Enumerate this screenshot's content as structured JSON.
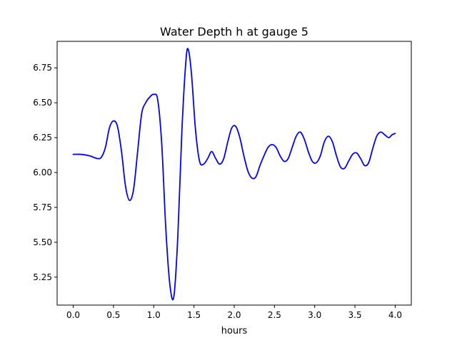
{
  "chart_data": {
    "type": "line",
    "title": "Water Depth h at gauge 5",
    "xlabel": "hours",
    "ylabel": "",
    "xlim": [
      -0.2,
      4.2
    ],
    "ylim": [
      5.05,
      6.94
    ],
    "xticks": [
      0.0,
      0.5,
      1.0,
      1.5,
      2.0,
      2.5,
      3.0,
      3.5,
      4.0
    ],
    "xtick_labels": [
      "0.0",
      "0.5",
      "1.0",
      "1.5",
      "2.0",
      "2.5",
      "3.0",
      "3.5",
      "4.0"
    ],
    "yticks": [
      5.25,
      5.5,
      5.75,
      6.0,
      6.25,
      6.5,
      6.75
    ],
    "ytick_labels": [
      "5.25",
      "5.50",
      "5.75",
      "6.00",
      "6.25",
      "6.50",
      "6.75"
    ],
    "grid": false,
    "legend": "none",
    "series": [
      {
        "color": "#0000ff",
        "x": [
          0.0,
          0.1,
          0.2,
          0.3,
          0.35,
          0.4,
          0.45,
          0.5,
          0.55,
          0.6,
          0.65,
          0.7,
          0.75,
          0.8,
          0.85,
          0.9,
          0.95,
          1.0,
          1.05,
          1.1,
          1.15,
          1.2,
          1.25,
          1.3,
          1.35,
          1.4,
          1.43,
          1.47,
          1.52,
          1.57,
          1.62,
          1.67,
          1.72,
          1.77,
          1.82,
          1.87,
          1.92,
          1.97,
          2.02,
          2.07,
          2.12,
          2.17,
          2.22,
          2.27,
          2.32,
          2.37,
          2.42,
          2.47,
          2.52,
          2.57,
          2.62,
          2.67,
          2.72,
          2.77,
          2.82,
          2.87,
          2.92,
          2.97,
          3.02,
          3.07,
          3.12,
          3.17,
          3.22,
          3.27,
          3.32,
          3.37,
          3.42,
          3.47,
          3.52,
          3.57,
          3.62,
          3.67,
          3.72,
          3.77,
          3.82,
          3.87,
          3.92,
          3.96,
          4.0
        ],
        "y": [
          6.13,
          6.13,
          6.12,
          6.1,
          6.11,
          6.18,
          6.32,
          6.37,
          6.33,
          6.15,
          5.9,
          5.8,
          5.88,
          6.15,
          6.42,
          6.5,
          6.54,
          6.56,
          6.52,
          6.2,
          5.6,
          5.2,
          5.11,
          5.55,
          6.3,
          6.8,
          6.88,
          6.7,
          6.3,
          6.08,
          6.06,
          6.1,
          6.15,
          6.1,
          6.06,
          6.1,
          6.22,
          6.32,
          6.33,
          6.25,
          6.12,
          6.01,
          5.96,
          5.97,
          6.05,
          6.12,
          6.18,
          6.2,
          6.18,
          6.12,
          6.08,
          6.1,
          6.18,
          6.26,
          6.29,
          6.24,
          6.15,
          6.08,
          6.07,
          6.12,
          6.22,
          6.26,
          6.22,
          6.12,
          6.04,
          6.03,
          6.08,
          6.13,
          6.14,
          6.1,
          6.05,
          6.07,
          6.17,
          6.26,
          6.29,
          6.27,
          6.25,
          6.27,
          6.28
        ]
      }
    ]
  }
}
